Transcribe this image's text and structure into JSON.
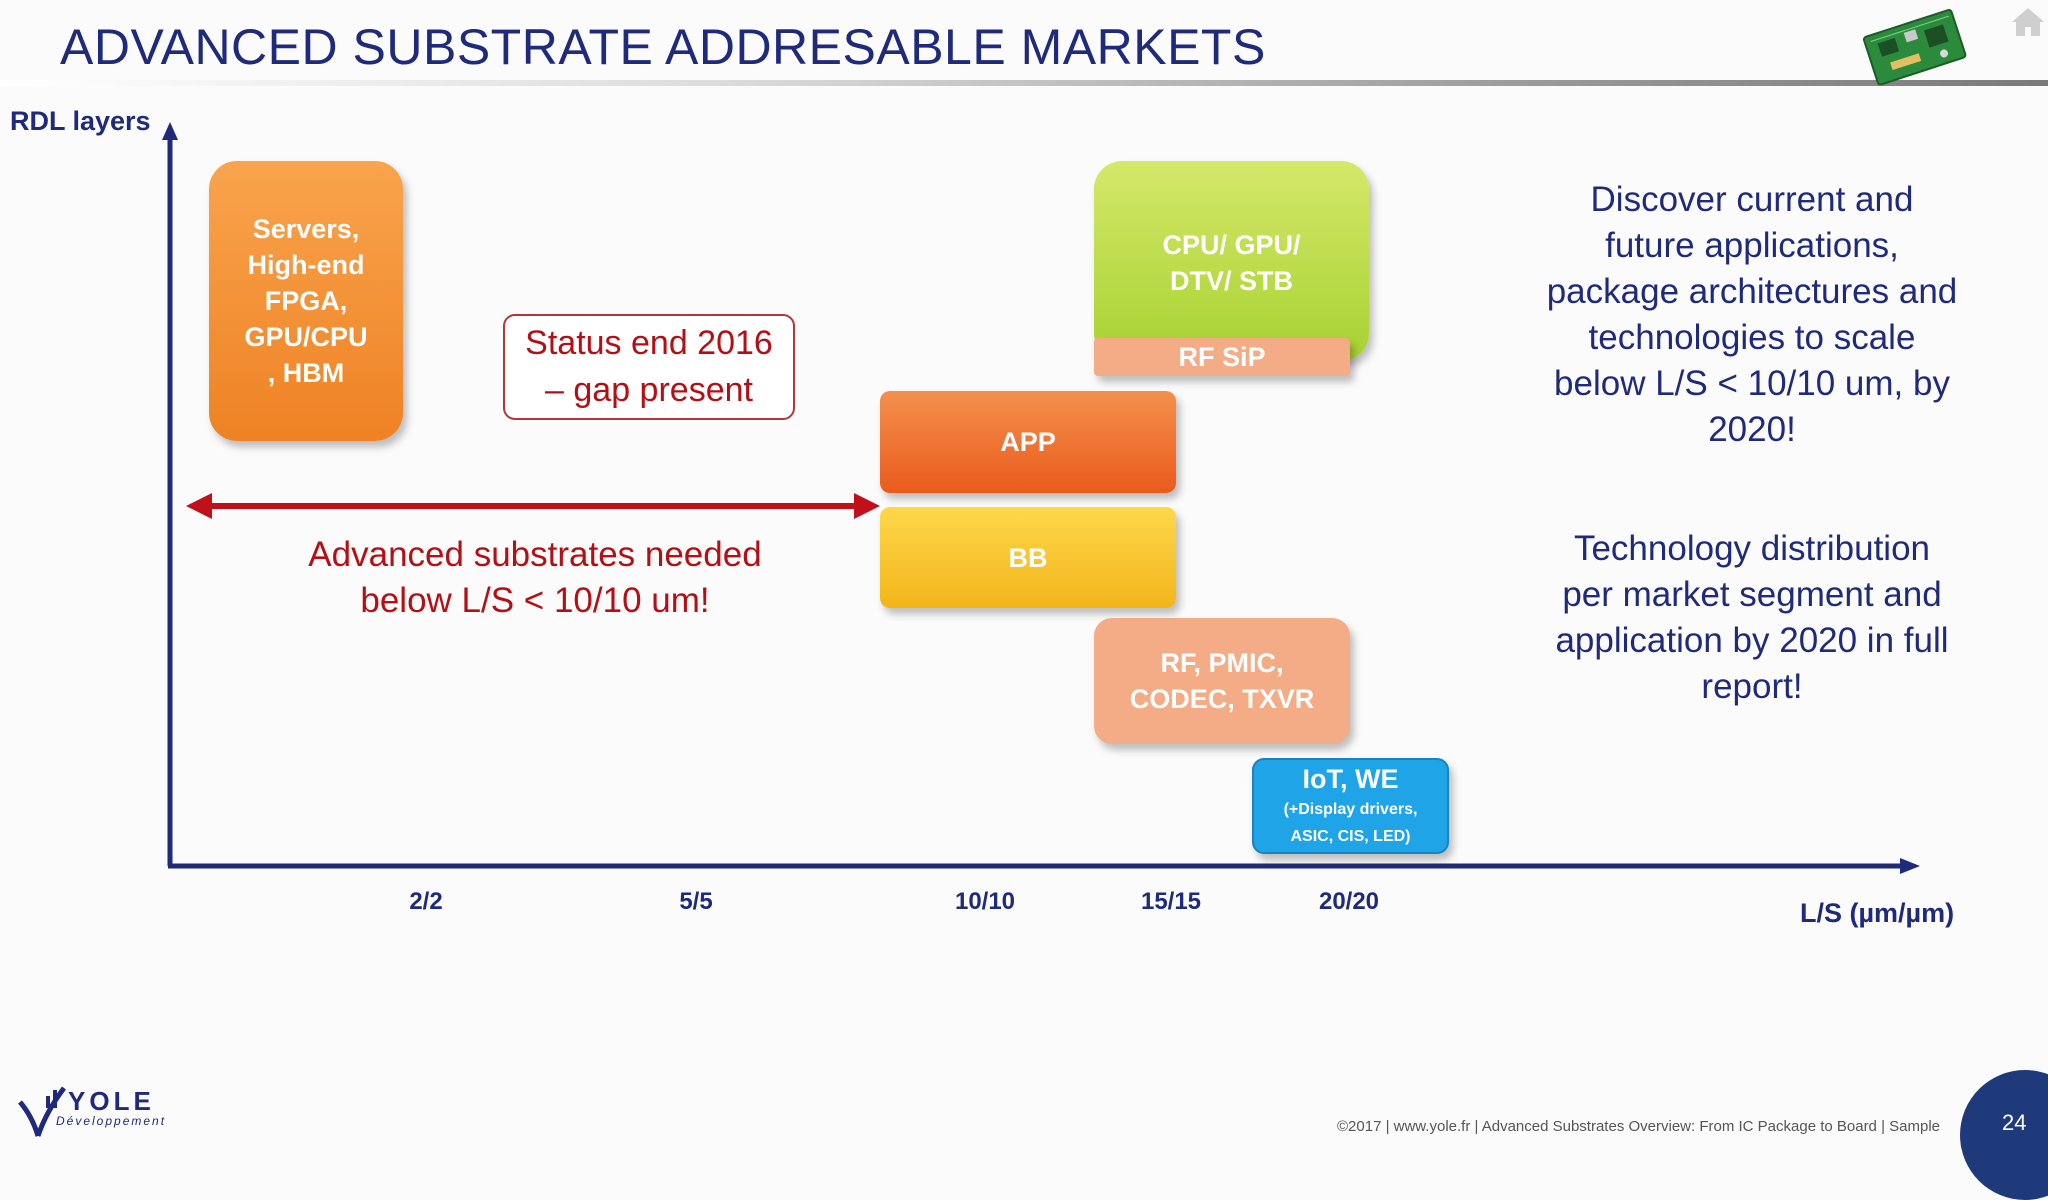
{
  "header": {
    "title": "ADVANCED SUBSTRATE ADDRESABLE MARKETS"
  },
  "axes": {
    "y_label": "RDL layers",
    "x_label": "L/S (µm/µm)",
    "ticks": [
      "2/2",
      "5/5",
      "10/10",
      "15/15",
      "20/20"
    ]
  },
  "segments": {
    "servers": [
      "Servers,",
      "High-end",
      "FPGA,",
      "GPU/CPU",
      ", HBM"
    ],
    "cpu": [
      "CPU/ GPU/",
      "DTV/ STB"
    ],
    "rfsip": "RF SiP",
    "app": "APP",
    "bb": "BB",
    "rfpmic": [
      "RF, PMIC,",
      "CODEC, TXVR"
    ],
    "iot": [
      "IoT, WE",
      "(+Display drivers,",
      "ASIC, CIS, LED)"
    ]
  },
  "callouts": {
    "status": [
      "Status end 2016",
      "– gap present"
    ],
    "needed": [
      "Advanced substrates needed",
      "below L/S < 10/10 um!"
    ],
    "discover": [
      "Discover current and",
      "future applications,",
      "package architectures and",
      "technologies to scale",
      "below L/S < 10/10 um, by",
      "2020!"
    ],
    "distribution": [
      "Technology distribution",
      "per market segment and",
      "application by 2020 in full",
      "report!"
    ]
  },
  "footer": {
    "text": "©2017  |  www.yole.fr  |  Advanced Substrates Overview: From IC Package to Board  |  Sample",
    "page": "24"
  },
  "logo": {
    "name": "YOLE",
    "tagline": "Développement"
  },
  "colors": {
    "title": "#1f2a7a",
    "accent_red": "#b30f15",
    "axis": "#1f2a7a"
  },
  "icons": [
    "pcb-board-icon",
    "home-icon",
    "yole-logo-icon"
  ]
}
